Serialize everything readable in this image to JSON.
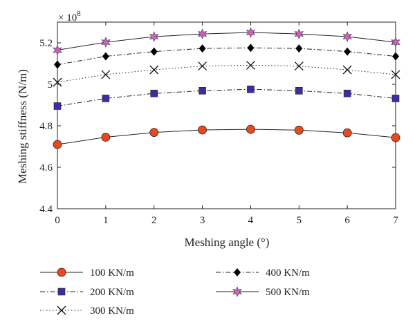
{
  "chart_data": {
    "type": "line",
    "xlabel": "Meshing angle (°)",
    "ylabel": "Meshing stiffness (N/m)",
    "y_scale_label": "× 10",
    "y_scale_exponent": "8",
    "xlim": [
      0,
      7
    ],
    "ylim": [
      4.4,
      5.3
    ],
    "x_ticks": [
      0,
      1,
      2,
      3,
      4,
      5,
      6,
      7
    ],
    "x_tick_labels": [
      "0",
      "1",
      "2",
      "3",
      "4",
      "5",
      "6",
      "7"
    ],
    "y_ticks": [
      4.4,
      4.6,
      4.8,
      5,
      5.2
    ],
    "y_tick_labels": [
      "4.4",
      "4.6",
      "4.8",
      "5",
      "5.2"
    ],
    "x": [
      0,
      1,
      2,
      3,
      4,
      5,
      6,
      7
    ],
    "series": [
      {
        "name": "100 KN/m",
        "marker": "circle",
        "line": "solid",
        "color": "#e8491f",
        "values": [
          4.71,
          4.745,
          4.768,
          4.78,
          4.783,
          4.779,
          4.766,
          4.743
        ]
      },
      {
        "name": "200 KN/m",
        "marker": "square",
        "line": "dashdot",
        "color": "#3d2ea0",
        "values": [
          4.895,
          4.932,
          4.956,
          4.969,
          4.976,
          4.969,
          4.956,
          4.932
        ]
      },
      {
        "name": "300 KN/m",
        "marker": "x",
        "line": "dotted",
        "color": "#111111",
        "values": [
          5.01,
          5.047,
          5.07,
          5.088,
          5.092,
          5.088,
          5.07,
          5.047
        ]
      },
      {
        "name": "400 KN/m",
        "marker": "diamond",
        "line": "dashdot",
        "color": "#000000",
        "values": [
          5.095,
          5.135,
          5.158,
          5.173,
          5.176,
          5.173,
          5.158,
          5.135
        ]
      },
      {
        "name": "500 KN/m",
        "marker": "star",
        "line": "solid",
        "color": "#d060c0",
        "values": [
          5.165,
          5.203,
          5.23,
          5.243,
          5.25,
          5.243,
          5.23,
          5.203
        ]
      }
    ],
    "legend_position": "bottom",
    "grid": false
  }
}
